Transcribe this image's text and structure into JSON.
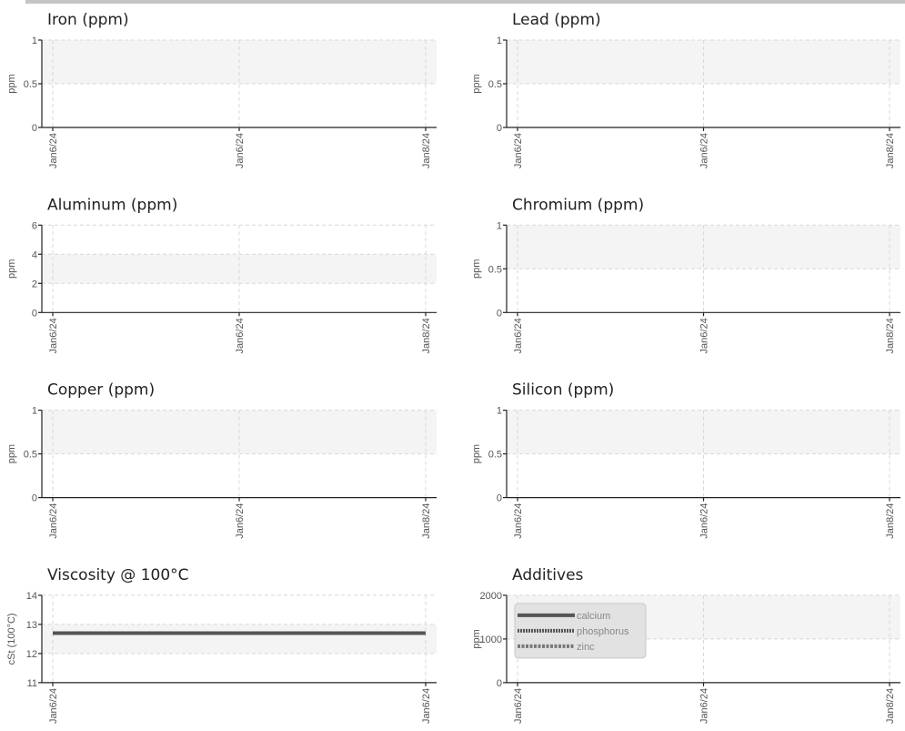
{
  "chart_data": [
    {
      "type": "line",
      "title": "Iron (ppm)",
      "ylabel": "ppm",
      "categories": [
        "Jan6/24",
        "Jan6/24",
        "Jan8/24"
      ],
      "ylim": [
        0,
        1
      ],
      "yticks": [
        0,
        0.5,
        1
      ],
      "band": [
        0.5,
        1
      ],
      "grid": true
    },
    {
      "type": "line",
      "title": "Lead (ppm)",
      "ylabel": "ppm",
      "categories": [
        "Jan6/24",
        "Jan6/24",
        "Jan8/24"
      ],
      "ylim": [
        0,
        1
      ],
      "yticks": [
        0,
        0.5,
        1
      ],
      "band": [
        0.5,
        1
      ],
      "grid": true
    },
    {
      "type": "line",
      "title": "Aluminum (ppm)",
      "ylabel": "ppm",
      "categories": [
        "Jan6/24",
        "Jan6/24",
        "Jan8/24"
      ],
      "ylim": [
        0,
        6
      ],
      "yticks": [
        0,
        2,
        4,
        6
      ],
      "band": [
        2,
        4
      ],
      "grid": true
    },
    {
      "type": "line",
      "title": "Chromium (ppm)",
      "ylabel": "ppm",
      "categories": [
        "Jan6/24",
        "Jan6/24",
        "Jan8/24"
      ],
      "ylim": [
        0,
        1
      ],
      "yticks": [
        0,
        0.5,
        1
      ],
      "band": [
        0.5,
        1
      ],
      "grid": true
    },
    {
      "type": "line",
      "title": "Copper (ppm)",
      "ylabel": "ppm",
      "categories": [
        "Jan6/24",
        "Jan6/24",
        "Jan8/24"
      ],
      "ylim": [
        0,
        1
      ],
      "yticks": [
        0,
        0.5,
        1
      ],
      "band": [
        0.5,
        1
      ],
      "grid": true
    },
    {
      "type": "line",
      "title": "Silicon (ppm)",
      "ylabel": "ppm",
      "categories": [
        "Jan6/24",
        "Jan6/24",
        "Jan8/24"
      ],
      "ylim": [
        0,
        1
      ],
      "yticks": [
        0,
        0.5,
        1
      ],
      "band": [
        0.5,
        1
      ],
      "grid": true
    },
    {
      "type": "line",
      "title": "Viscosity @ 100°C",
      "ylabel": "cSt (100°C)",
      "categories": [
        "Jan6/24",
        "Jan6/24"
      ],
      "ylim": [
        11,
        14
      ],
      "yticks": [
        11,
        12,
        13,
        14
      ],
      "band": [
        12,
        13
      ],
      "grid": true,
      "series": [
        {
          "color": "#555555",
          "values": [
            12.7,
            12.7
          ]
        }
      ]
    },
    {
      "type": "line",
      "title": "Additives",
      "ylabel": "ppm",
      "categories": [
        "Jan6/24",
        "Jan6/24",
        "Jan8/24"
      ],
      "ylim": [
        0,
        2000
      ],
      "yticks": [
        0,
        1000,
        2000
      ],
      "band": [
        1000,
        2000
      ],
      "grid": true,
      "legend": "upper left",
      "series": [
        {
          "name": "calcium",
          "color": "#555555",
          "dash": "solid",
          "values": [
            null,
            null,
            null
          ]
        },
        {
          "name": "phosphorus",
          "color": "#555555",
          "dash": "dotted",
          "values": [
            null,
            null,
            null
          ]
        },
        {
          "name": "zinc",
          "color": "#777777",
          "dash": "dashed",
          "values": [
            null,
            null,
            null
          ]
        }
      ]
    }
  ]
}
